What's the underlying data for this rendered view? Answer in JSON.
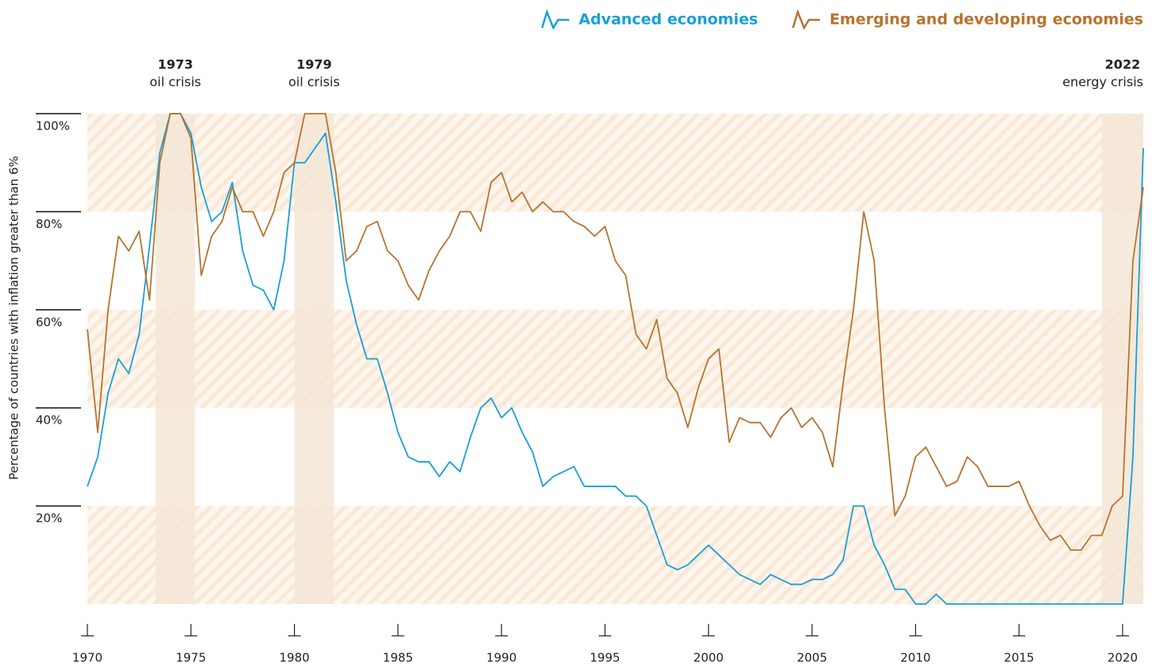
{
  "chart_data": {
    "type": "line",
    "y_label": "Percentage of countries with inflation greater than 6%",
    "legend": "top-right",
    "x": [
      1970,
      1970.5,
      1971,
      1971.5,
      1972,
      1972.5,
      1973,
      1973.5,
      1974,
      1974.5,
      1975,
      1975.5,
      1976,
      1976.5,
      1977,
      1977.5,
      1978,
      1978.5,
      1979,
      1979.5,
      1980,
      1980.5,
      1981,
      1981.5,
      1982,
      1982.5,
      1983,
      1983.5,
      1984,
      1984.5,
      1985,
      1985.5,
      1986,
      1986.5,
      1987,
      1987.5,
      1988,
      1988.5,
      1989,
      1989.5,
      1990,
      1990.5,
      1991,
      1991.5,
      1992,
      1992.5,
      1993,
      1993.5,
      1994,
      1994.5,
      1995,
      1995.5,
      1996,
      1996.5,
      1997,
      1997.5,
      1998,
      1998.5,
      1999,
      1999.5,
      2000,
      2000.5,
      2001,
      2001.5,
      2002,
      2002.5,
      2003,
      2003.5,
      2004,
      2004.5,
      2005,
      2005.5,
      2006,
      2006.5,
      2007,
      2007.5,
      2008,
      2008.5,
      2009,
      2009.5,
      2010,
      2010.5,
      2011,
      2011.5,
      2012,
      2012.5,
      2013,
      2013.5,
      2014,
      2014.5,
      2015,
      2015.5,
      2016,
      2016.5,
      2017,
      2017.5,
      2018,
      2018.5,
      2019,
      2019.5,
      2020,
      2020.5,
      2021
    ],
    "series": [
      {
        "name": "Advanced economies",
        "color": "#1a9fd9",
        "values": [
          24,
          30,
          43,
          50,
          47,
          55,
          73,
          92,
          100,
          100,
          96,
          85,
          78,
          80,
          86,
          72,
          65,
          64,
          60,
          70,
          90,
          90,
          93,
          96,
          82,
          66,
          57,
          50,
          50,
          43,
          35,
          30,
          29,
          29,
          26,
          29,
          27,
          34,
          40,
          42,
          38,
          40,
          35,
          31,
          24,
          26,
          27,
          28,
          24,
          24,
          24,
          24,
          22,
          22,
          20,
          14,
          8,
          7,
          8,
          10,
          12,
          10,
          8,
          6,
          5,
          4,
          6,
          5,
          4,
          4,
          5,
          5,
          6,
          9,
          20,
          20,
          12,
          8,
          3,
          3,
          0,
          0,
          2,
          0,
          0,
          0,
          0,
          0,
          0,
          0,
          0,
          0,
          0,
          0,
          0,
          0,
          0,
          0,
          0,
          0,
          0,
          30,
          93
        ]
      },
      {
        "name": "Emerging and developing economies",
        "color": "#b8732e",
        "values": [
          56,
          35,
          60,
          75,
          72,
          76,
          62,
          90,
          100,
          100,
          95,
          67,
          75,
          78,
          85,
          80,
          80,
          75,
          80,
          88,
          90,
          100,
          100,
          100,
          88,
          70,
          72,
          77,
          78,
          72,
          70,
          65,
          62,
          68,
          72,
          75,
          80,
          80,
          76,
          86,
          88,
          82,
          84,
          80,
          82,
          80,
          80,
          78,
          77,
          75,
          77,
          70,
          67,
          55,
          52,
          58,
          46,
          43,
          36,
          44,
          50,
          52,
          33,
          38,
          37,
          37,
          34,
          38,
          40,
          36,
          38,
          35,
          28,
          45,
          60,
          80,
          70,
          40,
          18,
          22,
          30,
          32,
          28,
          24,
          25,
          30,
          28,
          24,
          24,
          24,
          25,
          20,
          16,
          13,
          14,
          11,
          11,
          14,
          14,
          20,
          22,
          70,
          85
        ]
      }
    ],
    "xlim": [
      1970,
      2021
    ],
    "xticks": [
      1970,
      1975,
      1980,
      1985,
      1990,
      1995,
      2000,
      2005,
      2010,
      2015,
      2020
    ],
    "ylim": [
      0,
      100
    ],
    "yticks": [
      {
        "value": 20,
        "label": "20%"
      },
      {
        "value": 40,
        "label": "40%"
      },
      {
        "value": 60,
        "label": "60%"
      },
      {
        "value": 80,
        "label": "80%"
      },
      {
        "value": 100,
        "label": "100%"
      }
    ],
    "highlights": [
      {
        "start": 1973.3,
        "end": 1975.2,
        "year": "1973",
        "label": "oil crisis"
      },
      {
        "start": 1980,
        "end": 1981.9,
        "year": "1979",
        "label": "oil crisis"
      },
      {
        "start": 2019,
        "end": 2021,
        "year": "2022",
        "label": "energy crisis"
      }
    ]
  }
}
